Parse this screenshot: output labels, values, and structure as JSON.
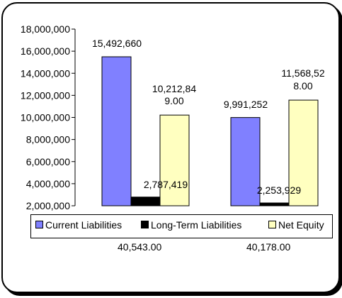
{
  "chart_data": {
    "type": "bar",
    "categories": [
      "40,543.00",
      "40,178.00"
    ],
    "series": [
      {
        "name": "Current Liabilities",
        "values": [
          15492660,
          9991252
        ],
        "color": "#8080ff",
        "labels": [
          [
            "15,492,660"
          ],
          [
            "9,991,252"
          ]
        ]
      },
      {
        "name": "Long-Term Liabilities",
        "values": [
          2787419,
          2253929
        ],
        "color": "#000000",
        "labels": [
          [
            "2,787,419"
          ],
          [
            "2,253,929"
          ]
        ]
      },
      {
        "name": "Net Equity",
        "values": [
          10212849,
          11568528
        ],
        "color": "#ffffc0",
        "labels": [
          [
            "10,212,84",
            "9.00"
          ],
          [
            "11,568,52",
            "8.00"
          ]
        ]
      }
    ],
    "ylim": [
      2000000,
      18000000
    ],
    "yticks": [
      "2,000,000",
      "4,000,000",
      "6,000,000",
      "8,000,000",
      "10,000,000",
      "12,000,000",
      "14,000,000",
      "16,000,000",
      "18,000,000"
    ],
    "ytick_values": [
      2000000,
      4000000,
      6000000,
      8000000,
      10000000,
      12000000,
      14000000,
      16000000,
      18000000
    ],
    "grid": false,
    "legend": "bottom"
  }
}
